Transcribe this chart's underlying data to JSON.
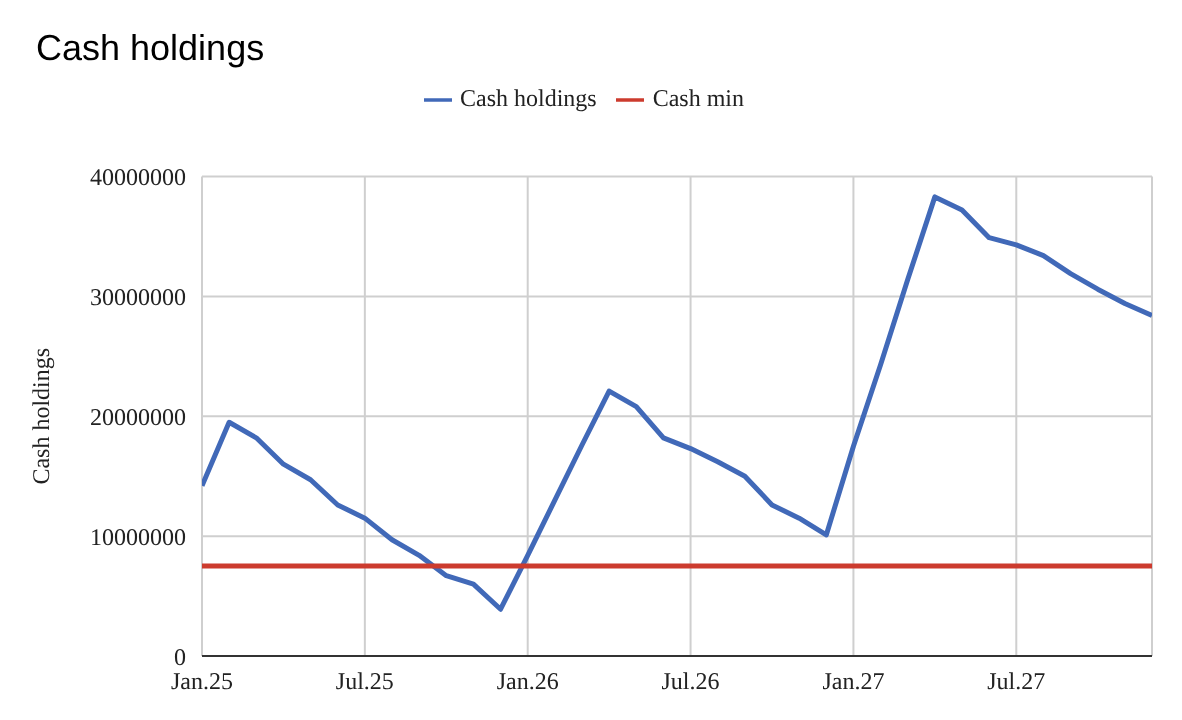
{
  "chart_data": {
    "type": "line",
    "title": "Cash holdings",
    "ylabel": "Cash holdings",
    "x": [
      "2025-01",
      "2025-02",
      "2025-03",
      "2025-04",
      "2025-05",
      "2025-06",
      "2025-07",
      "2025-08",
      "2025-09",
      "2025-10",
      "2025-11",
      "2025-12",
      "2026-01",
      "2026-02",
      "2026-03",
      "2026-04",
      "2026-05",
      "2026-06",
      "2026-07",
      "2026-08",
      "2026-09",
      "2026-10",
      "2026-11",
      "2026-12",
      "2027-01",
      "2027-02",
      "2027-03",
      "2027-04",
      "2027-05",
      "2027-06",
      "2027-07",
      "2027-08",
      "2027-09",
      "2027-10",
      "2027-11",
      "2027-12"
    ],
    "series": [
      {
        "name": "Cash holdings",
        "color": "#4169b8",
        "values": [
          14200000,
          19500000,
          18200000,
          16000000,
          14700000,
          12600000,
          11500000,
          9700000,
          8400000,
          6700000,
          6000000,
          3900000,
          8400000,
          13000000,
          17600000,
          22100000,
          20800000,
          18200000,
          17300000,
          16200000,
          15000000,
          12600000,
          11500000,
          10100000,
          17500000,
          24300000,
          31400000,
          38300000,
          37200000,
          34900000,
          34300000,
          33400000,
          31900000,
          30600000,
          29400000,
          28400000
        ]
      },
      {
        "name": "Cash min",
        "color": "#cc3b2e",
        "values": [
          7500000,
          7500000,
          7500000,
          7500000,
          7500000,
          7500000,
          7500000,
          7500000,
          7500000,
          7500000,
          7500000,
          7500000,
          7500000,
          7500000,
          7500000,
          7500000,
          7500000,
          7500000,
          7500000,
          7500000,
          7500000,
          7500000,
          7500000,
          7500000,
          7500000,
          7500000,
          7500000,
          7500000,
          7500000,
          7500000,
          7500000,
          7500000,
          7500000,
          7500000,
          7500000,
          7500000
        ]
      }
    ],
    "xlim": [
      "2025-01",
      "2027-12"
    ],
    "xticks": [
      {
        "value": "2025-01",
        "label": "Jan.25"
      },
      {
        "value": "2025-07",
        "label": "Jul.25"
      },
      {
        "value": "2026-01",
        "label": "Jan.26"
      },
      {
        "value": "2026-07",
        "label": "Jul.26"
      },
      {
        "value": "2027-01",
        "label": "Jan.27"
      },
      {
        "value": "2027-07",
        "label": "Jul.27"
      }
    ],
    "ylim": [
      0,
      40000000
    ],
    "yticks": [
      0,
      10000000,
      20000000,
      30000000,
      40000000
    ],
    "grid": true,
    "legend": "top",
    "marker": "none",
    "line_style": "solid"
  }
}
